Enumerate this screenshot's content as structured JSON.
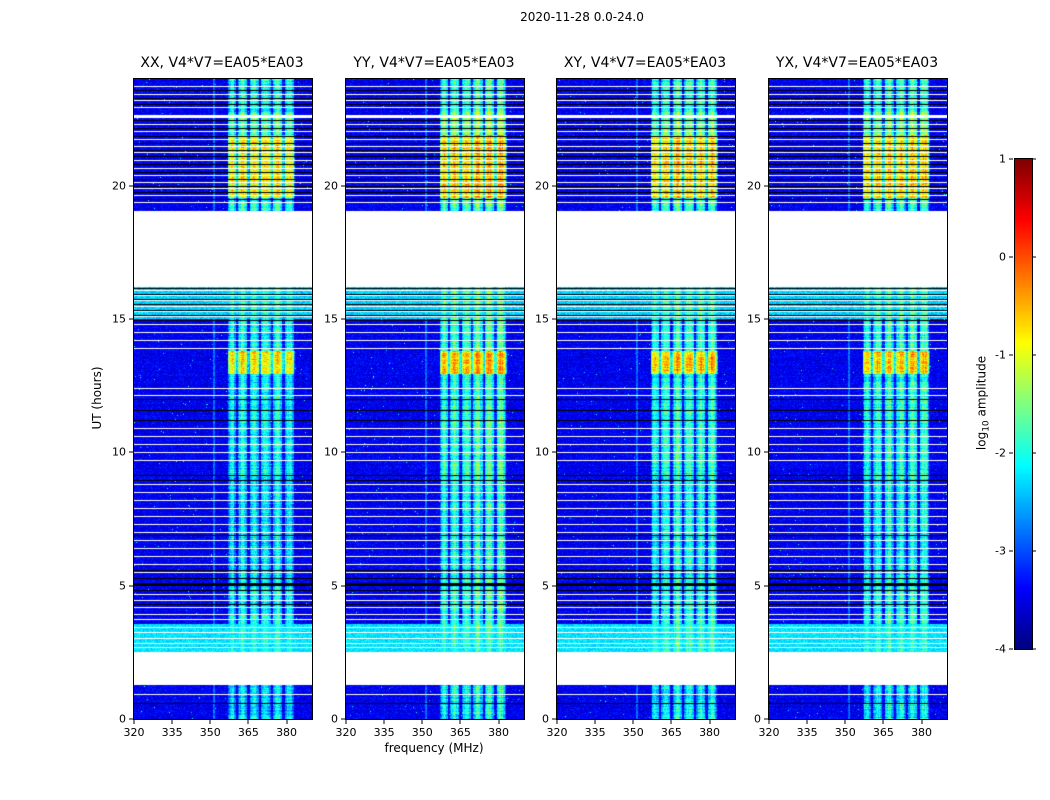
{
  "chart_data": {
    "type": "heatmap",
    "title": "2020-11-28 0.0-24.0",
    "xlabel": "frequency (MHz)",
    "ylabel": "UT (hours)",
    "x_range": [
      320,
      390
    ],
    "x_ticks": [
      320,
      335,
      350,
      365,
      380
    ],
    "y_range": [
      0,
      24
    ],
    "y_ticks": [
      0,
      5,
      10,
      15,
      20
    ],
    "panels": [
      {
        "title": "XX, V4*V7=EA05*EA03",
        "seed": 101,
        "band_boost": 0.0
      },
      {
        "title": "YY, V4*V7=EA05*EA03",
        "seed": 202,
        "band_boost": 0.25
      },
      {
        "title": "XY, V4*V7=EA05*EA03",
        "seed": 303,
        "band_boost": 0.15
      },
      {
        "title": "YX, V4*V7=EA05*EA03",
        "seed": 404,
        "band_boost": 0.1
      }
    ],
    "colorbar": {
      "label": "log10 amplitude",
      "label_parts": [
        "log",
        "10",
        " amplitude"
      ],
      "ticks": [
        1,
        0,
        -1,
        -2,
        -3,
        -4
      ],
      "range": [
        -4,
        1
      ],
      "colormap": "jet"
    },
    "background_level": -3.45,
    "noise_sigma": 0.22,
    "speckle_prob": 0.004,
    "rfi_band": {
      "freq_start": 357,
      "freq_end": 383.5,
      "stripe_period_mhz": 4.6,
      "base_level": -2.6,
      "time_levels": [
        [
          0,
          1.28,
          -2.5
        ],
        [
          2.52,
          5.2,
          -2.35
        ],
        [
          5.2,
          9.0,
          -2.45
        ],
        [
          9.0,
          12.5,
          -2.3
        ],
        [
          12.5,
          12.95,
          -2.4
        ],
        [
          12.95,
          13.8,
          -1.0
        ],
        [
          13.8,
          16.2,
          -2.25
        ],
        [
          19.05,
          19.55,
          -2.2
        ],
        [
          19.55,
          21.9,
          -1.1
        ],
        [
          21.9,
          22.75,
          -1.9
        ],
        [
          22.75,
          24,
          -2.25
        ]
      ],
      "narrow_lines": [
        {
          "freq": 351.5,
          "level": -2.85
        }
      ]
    },
    "data_gaps": [
      [
        16.2,
        19.05
      ],
      [
        1.28,
        2.51
      ]
    ],
    "bright_regions": [
      [
        15.0,
        16.2,
        -2.35
      ],
      [
        2.52,
        3.55,
        -2.25
      ]
    ],
    "white_lines": [
      23.75,
      23.45,
      23.2,
      22.95,
      22.3,
      22.05,
      21.75,
      21.5,
      21.25,
      20.95,
      20.65,
      20.4,
      20.15,
      19.9,
      19.65,
      19.4,
      16.1,
      15.9,
      15.7,
      15.5,
      15.3,
      15.1,
      14.8,
      14.5,
      14.2,
      13.9,
      12.4,
      12.15,
      10.9,
      10.6,
      10.3,
      10.0,
      9.7,
      8.8,
      8.5,
      8.2,
      7.9,
      7.6,
      7.3,
      7.0,
      6.7,
      6.4,
      6.1,
      5.8,
      5.5,
      4.7,
      4.45,
      4.2,
      3.95,
      3.75,
      3.45,
      3.25,
      3.05,
      2.85,
      2.7,
      0.95
    ],
    "thick_white_lines": [
      22.62
    ],
    "black_lines": [
      23.6,
      23.3,
      23.05,
      22.45,
      22.15,
      21.85,
      21.6,
      21.35,
      21.1,
      20.8,
      20.5,
      20.25,
      20.0,
      19.75,
      19.5,
      16.15,
      15.95,
      15.75,
      15.55,
      15.35,
      15.15,
      14.95,
      12.0,
      11.6,
      11.2,
      9.15,
      8.95,
      6.9,
      5.6,
      5.3,
      4.85,
      4.3,
      0.6
    ],
    "thick_black_lines": [
      5.05
    ]
  }
}
